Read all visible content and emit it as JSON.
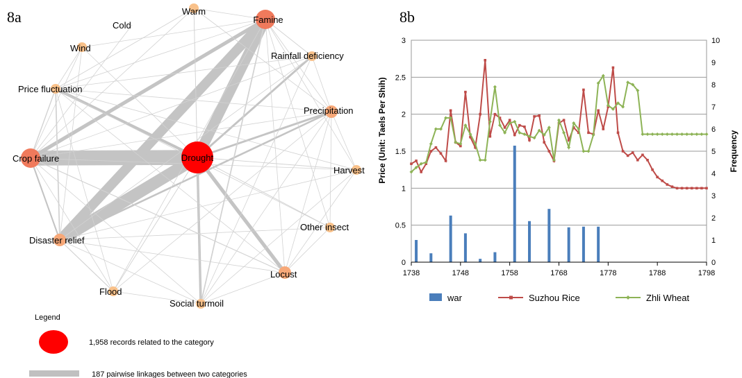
{
  "chart_data": [
    {
      "type": "network",
      "panel_label": "8a",
      "nodes": [
        {
          "id": "drought",
          "label": "Drought",
          "color": "#ff0000",
          "size": "largest"
        },
        {
          "id": "famine",
          "label": "Famine",
          "color": "#f07a5c",
          "size": "large"
        },
        {
          "id": "crop_failure",
          "label": "Crop failure",
          "color": "#f07a5c",
          "size": "large"
        },
        {
          "id": "warm",
          "label": "Warm",
          "color": "#f9c18a",
          "size": "small"
        },
        {
          "id": "cold",
          "label": "Cold",
          "color": "#f9c18a",
          "size": "none"
        },
        {
          "id": "wind",
          "label": "Wind",
          "color": "#f9c18a",
          "size": "small"
        },
        {
          "id": "rainfall_deficiency",
          "label": "Rainfall deficiency",
          "color": "#f9c18a",
          "size": "small"
        },
        {
          "id": "price_fluctuation",
          "label": "Price fluctuation",
          "color": "#f9c18a",
          "size": "small"
        },
        {
          "id": "precipitation",
          "label": "Precipitation",
          "color": "#f7a878",
          "size": "medium"
        },
        {
          "id": "harvest",
          "label": "Harvest",
          "color": "#f9c18a",
          "size": "small"
        },
        {
          "id": "other_insect",
          "label": "Other insect",
          "color": "#f9c18a",
          "size": "small"
        },
        {
          "id": "disaster_relief",
          "label": "Disaster relief",
          "color": "#f7a878",
          "size": "medium"
        },
        {
          "id": "locust",
          "label": "Locust",
          "color": "#f7a878",
          "size": "medium"
        },
        {
          "id": "social_turmoil",
          "label": "Social turmoil",
          "color": "#f9c18a",
          "size": "small"
        },
        {
          "id": "flood",
          "label": "Flood",
          "color": "#f9c18a",
          "size": "small"
        }
      ],
      "edges": [
        {
          "source": "drought",
          "target": "crop_failure",
          "weight": 187
        },
        {
          "source": "drought",
          "target": "disaster_relief",
          "weight": 150
        },
        {
          "source": "drought",
          "target": "famine",
          "weight": 130
        },
        {
          "source": "famine",
          "target": "disaster_relief",
          "weight": 120
        },
        {
          "source": "famine",
          "target": "crop_failure",
          "weight": 45
        },
        {
          "source": "drought",
          "target": "locust",
          "weight": 45
        },
        {
          "source": "drought",
          "target": "price_fluctuation",
          "weight": 35
        },
        {
          "source": "drought",
          "target": "social_turmoil",
          "weight": 30
        },
        {
          "source": "drought",
          "target": "precipitation",
          "weight": 25
        },
        {
          "source": "drought",
          "target": "rainfall_deficiency",
          "weight": 25
        },
        {
          "source": "disaster_relief",
          "target": "precipitation",
          "weight": 22
        },
        {
          "source": "crop_failure",
          "target": "disaster_relief",
          "weight": 18
        },
        {
          "source": "price_fluctuation",
          "target": "disaster_relief",
          "weight": 15
        },
        {
          "source": "famine",
          "target": "social_turmoil",
          "weight": 15
        },
        {
          "source": "crop_failure",
          "target": "price_fluctuation",
          "weight": 12
        },
        {
          "source": "crop_failure",
          "target": "locust",
          "weight": 10
        },
        {
          "source": "disaster_relief",
          "target": "flood",
          "weight": 10
        },
        {
          "source": "famine",
          "target": "rainfall_deficiency",
          "weight": 8
        },
        {
          "source": "drought",
          "target": "harvest",
          "weight": 8
        },
        {
          "source": "drought",
          "target": "other_insect",
          "weight": 8
        },
        {
          "source": "drought",
          "target": "flood",
          "weight": 8
        },
        {
          "source": "drought",
          "target": "wind",
          "weight": 6
        },
        {
          "source": "drought",
          "target": "warm",
          "weight": 6
        },
        {
          "source": "famine",
          "target": "price_fluctuation",
          "weight": 6
        },
        {
          "source": "famine",
          "target": "precipitation",
          "weight": 6
        },
        {
          "source": "famine",
          "target": "locust",
          "weight": 6
        },
        {
          "source": "price_fluctuation",
          "target": "precipitation",
          "weight": 5
        },
        {
          "source": "crop_failure",
          "target": "flood",
          "weight": 5
        },
        {
          "source": "crop_failure",
          "target": "social_turmoil",
          "weight": 5
        },
        {
          "source": "crop_failure",
          "target": "harvest",
          "weight": 5
        },
        {
          "source": "disaster_relief",
          "target": "locust",
          "weight": 5
        },
        {
          "source": "disaster_relief",
          "target": "social_turmoil",
          "weight": 5
        },
        {
          "source": "price_fluctuation",
          "target": "locust",
          "weight": 4
        },
        {
          "source": "rainfall_deficiency",
          "target": "disaster_relief",
          "weight": 4
        },
        {
          "source": "precipitation",
          "target": "locust",
          "weight": 4
        },
        {
          "source": "famine",
          "target": "wind",
          "weight": 3
        },
        {
          "source": "famine",
          "target": "warm",
          "weight": 3
        },
        {
          "source": "famine",
          "target": "harvest",
          "weight": 3
        },
        {
          "source": "famine",
          "target": "other_insect",
          "weight": 3
        },
        {
          "source": "famine",
          "target": "flood",
          "weight": 3
        },
        {
          "source": "wind",
          "target": "price_fluctuation",
          "weight": 3
        },
        {
          "source": "wind",
          "target": "crop_failure",
          "weight": 3
        },
        {
          "source": "warm",
          "target": "price_fluctuation",
          "weight": 2
        },
        {
          "source": "warm",
          "target": "social_turmoil",
          "weight": 2
        },
        {
          "source": "warm",
          "target": "crop_failure",
          "weight": 2
        },
        {
          "source": "rainfall_deficiency",
          "target": "precipitation",
          "weight": 2
        },
        {
          "source": "rainfall_deficiency",
          "target": "price_fluctuation",
          "weight": 2
        },
        {
          "source": "rainfall_deficiency",
          "target": "crop_failure",
          "weight": 2
        },
        {
          "source": "rainfall_deficiency",
          "target": "social_turmoil",
          "weight": 2
        },
        {
          "source": "precipitation",
          "target": "harvest",
          "weight": 2
        },
        {
          "source": "precipitation",
          "target": "flood",
          "weight": 2
        },
        {
          "source": "precipitation",
          "target": "other_insect",
          "weight": 2
        },
        {
          "source": "harvest",
          "target": "disaster_relief",
          "weight": 2
        },
        {
          "source": "harvest",
          "target": "locust",
          "weight": 2
        },
        {
          "source": "harvest",
          "target": "social_turmoil",
          "weight": 2
        },
        {
          "source": "other_insect",
          "target": "disaster_relief",
          "weight": 2
        },
        {
          "source": "other_insect",
          "target": "locust",
          "weight": 2
        },
        {
          "source": "other_insect",
          "target": "price_fluctuation",
          "weight": 2
        },
        {
          "source": "locust",
          "target": "social_turmoil",
          "weight": 2
        },
        {
          "source": "flood",
          "target": "social_turmoil",
          "weight": 2
        },
        {
          "source": "flood",
          "target": "price_fluctuation",
          "weight": 2
        },
        {
          "source": "wind",
          "target": "disaster_relief",
          "weight": 2
        },
        {
          "source": "cold",
          "target": "crop_failure",
          "weight": 1
        },
        {
          "source": "warm",
          "target": "precipitation",
          "weight": 1
        },
        {
          "source": "social_turmoil",
          "target": "precipitation",
          "weight": 2
        },
        {
          "source": "harvest",
          "target": "price_fluctuation",
          "weight": 1
        },
        {
          "source": "crop_failure",
          "target": "precipitation",
          "weight": 3
        }
      ],
      "legend": {
        "title": "Legend",
        "node_text": "1,958 records related to the category",
        "edge_text": "187 pairwise linkages between two categories"
      }
    },
    {
      "type": "bar+line",
      "panel_label": "8b",
      "x": [
        1738,
        1739,
        1740,
        1741,
        1742,
        1743,
        1744,
        1745,
        1746,
        1747,
        1748,
        1749,
        1750,
        1751,
        1752,
        1753,
        1754,
        1755,
        1756,
        1757,
        1758,
        1759,
        1760,
        1761,
        1762,
        1763,
        1764,
        1765,
        1766,
        1767,
        1768,
        1769,
        1770,
        1771,
        1772,
        1773,
        1774,
        1775,
        1776,
        1777,
        1778,
        1779,
        1780,
        1781,
        1782,
        1783,
        1784,
        1785,
        1786,
        1787,
        1788,
        1789,
        1790,
        1791,
        1792,
        1793,
        1794,
        1795,
        1796,
        1797,
        1798
      ],
      "xticks": [
        1738,
        1748,
        1758,
        1768,
        1778,
        1788,
        1798
      ],
      "ylabel": "Price (Unit: Taels Per Shih)",
      "ylabel_right": "Frequency",
      "ylim": [
        0,
        3
      ],
      "yticks": [
        0,
        0.5,
        1,
        1.5,
        2,
        2.5,
        3
      ],
      "ylim_right": [
        0,
        10
      ],
      "yticks_right": [
        0,
        1,
        2,
        3,
        4,
        5,
        6,
        7,
        8,
        9,
        10
      ],
      "grid": true,
      "legend_position": "bottom",
      "series": [
        {
          "name": "war",
          "kind": "bar",
          "axis": "right",
          "color": "#4a7ebb",
          "points": [
            [
              1739,
              1
            ],
            [
              1742,
              0.4
            ],
            [
              1746,
              2.1
            ],
            [
              1749,
              1.3
            ],
            [
              1752,
              0.15
            ],
            [
              1755,
              0.45
            ],
            [
              1759,
              5.25
            ],
            [
              1762,
              1.85
            ],
            [
              1766,
              2.4
            ],
            [
              1770,
              1.57
            ],
            [
              1773,
              1.6
            ],
            [
              1776,
              1.6
            ]
          ]
        },
        {
          "name": "Suzhou Rice",
          "kind": "line",
          "axis": "left",
          "color": "#be4b48",
          "values": [
            1.33,
            1.37,
            1.22,
            1.33,
            1.5,
            1.55,
            1.47,
            1.37,
            2.05,
            1.62,
            1.57,
            2.3,
            1.69,
            1.55,
            2.0,
            2.73,
            1.7,
            2.0,
            1.95,
            1.82,
            1.92,
            1.72,
            1.85,
            1.83,
            1.65,
            1.97,
            1.98,
            1.62,
            1.5,
            1.37,
            1.88,
            1.92,
            1.65,
            1.82,
            1.75,
            2.33,
            1.75,
            1.73,
            2.05,
            1.8,
            2.1,
            2.63,
            1.75,
            1.5,
            1.44,
            1.48,
            1.38,
            1.45,
            1.38,
            1.25,
            1.15,
            1.1,
            1.05,
            1.02,
            1.0,
            1.0,
            1.0,
            1.0,
            1.0,
            1.0,
            1.0
          ]
        },
        {
          "name": "Zhli Wheat",
          "kind": "line",
          "axis": "left",
          "color": "#8db356",
          "values": [
            1.22,
            1.28,
            1.33,
            1.35,
            1.6,
            1.8,
            1.8,
            1.95,
            1.95,
            1.62,
            1.6,
            1.85,
            1.73,
            1.6,
            1.38,
            1.38,
            1.9,
            2.37,
            1.85,
            1.75,
            1.88,
            1.9,
            1.75,
            1.73,
            1.7,
            1.68,
            1.78,
            1.72,
            1.82,
            1.38,
            1.92,
            1.75,
            1.55,
            1.88,
            1.8,
            1.5,
            1.5,
            1.72,
            2.42,
            2.52,
            2.12,
            2.07,
            2.15,
            2.1,
            2.43,
            2.4,
            2.32,
            1.73,
            1.73,
            1.73,
            1.73,
            1.73,
            1.73,
            1.73,
            1.73,
            1.73,
            1.73,
            1.73,
            1.73,
            1.73,
            1.73
          ]
        }
      ]
    }
  ]
}
